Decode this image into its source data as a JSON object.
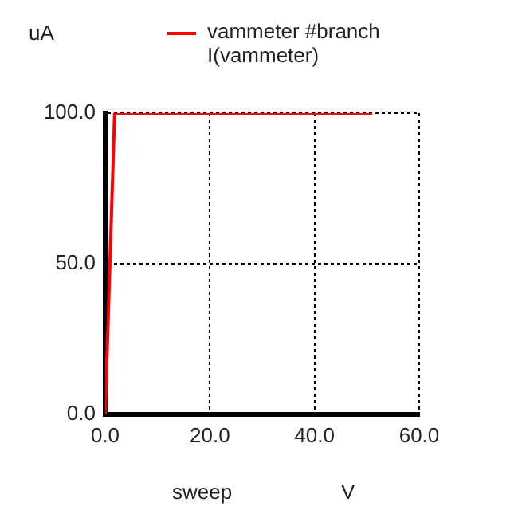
{
  "chart_data": {
    "type": "line",
    "ylabel": "uA",
    "xlabel": "sweep",
    "annotations": [
      "V"
    ],
    "x": [
      0,
      1.8,
      51
    ],
    "series": [
      {
        "name": "vammeter #branch\nI(vammeter)",
        "color": "#ff0000",
        "values": [
          0,
          100,
          100
        ]
      }
    ],
    "xlim": [
      0,
      60
    ],
    "xticks": [
      {
        "value": 0,
        "label": "0.0"
      },
      {
        "value": 20,
        "label": "20.0"
      },
      {
        "value": 40,
        "label": "40.0"
      },
      {
        "value": 60,
        "label": "60.0"
      }
    ],
    "ylim": [
      0,
      100
    ],
    "yticks": [
      {
        "value": 0,
        "label": "0.0"
      },
      {
        "value": 50,
        "label": "50.0"
      },
      {
        "value": 100,
        "label": "100.0"
      }
    ],
    "grid": true,
    "legend": "top"
  }
}
